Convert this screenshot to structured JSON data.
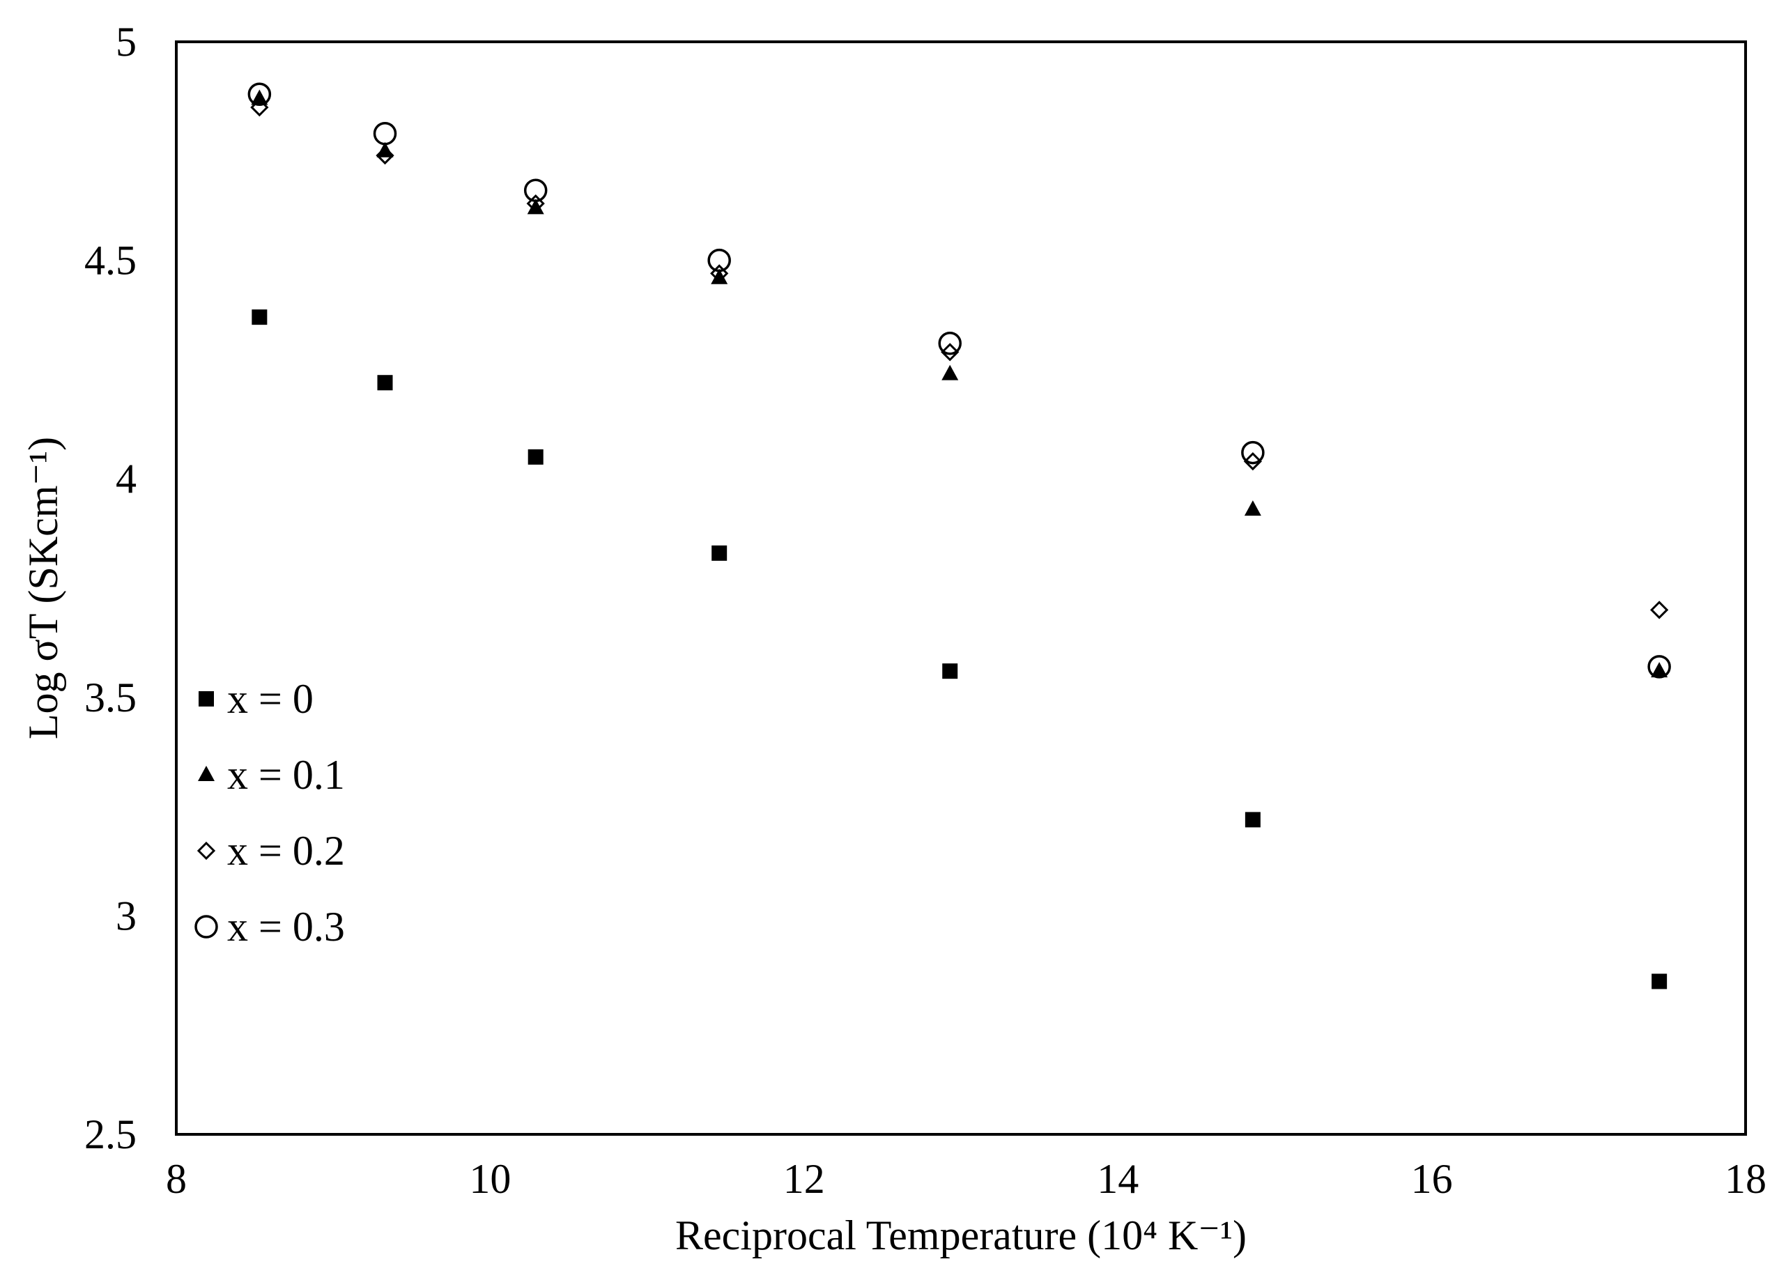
{
  "chart_data": {
    "type": "scatter",
    "title": "",
    "xlabel": "Reciprocal Temperature (10⁴ K⁻¹)",
    "ylabel": "Log σT (SKcm⁻¹)",
    "xlim": [
      8,
      18
    ],
    "ylim": [
      2.5,
      5
    ],
    "x_ticks": [
      8,
      10,
      12,
      14,
      16,
      18
    ],
    "y_ticks": [
      2.5,
      3,
      3.5,
      4,
      4.5,
      5
    ],
    "x_tick_labels": [
      "8",
      "10",
      "12",
      "14",
      "16",
      "18"
    ],
    "y_tick_labels": [
      "2.5",
      "3",
      "3.5",
      "4",
      "4.5",
      "5"
    ],
    "grid": false,
    "legend_position": "left",
    "x": [
      8.53,
      9.33,
      10.29,
      11.46,
      12.93,
      14.86,
      17.45
    ],
    "series": [
      {
        "name": "x = 0",
        "marker": "filled-square",
        "color": "#000000",
        "values": [
          4.37,
          4.22,
          4.05,
          3.83,
          3.56,
          3.22,
          2.85
        ]
      },
      {
        "name": "x = 0.1",
        "marker": "filled-triangle",
        "color": "#000000",
        "values": [
          4.87,
          4.75,
          4.62,
          4.46,
          4.24,
          3.93,
          3.56
        ]
      },
      {
        "name": "x = 0.2",
        "marker": "open-diamond",
        "color": "#000000",
        "values": [
          4.85,
          4.74,
          4.63,
          4.47,
          4.29,
          4.04,
          3.7
        ]
      },
      {
        "name": "x = 0.3",
        "marker": "open-circle",
        "color": "#000000",
        "values": [
          4.88,
          4.79,
          4.66,
          4.5,
          4.31,
          4.06,
          3.57
        ]
      }
    ]
  }
}
